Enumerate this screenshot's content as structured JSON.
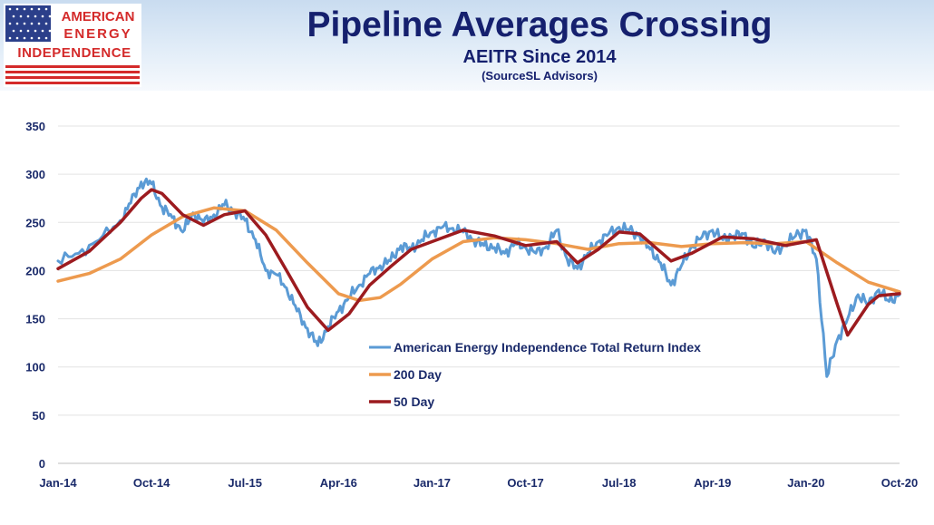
{
  "header": {
    "logo_line1": "AMERICAN",
    "logo_line2": "ENERGY",
    "logo_line3": "INDEPENDENCE",
    "title": "Pipeline Averages Crossing",
    "subtitle": "AEITR Since 2014",
    "source": "(SourceSL Advisors)"
  },
  "colors": {
    "brand_red": "#d42a2a",
    "brand_navy": "#15206e",
    "flag_blue": "#2b3f8a",
    "index": "#5b9bd5",
    "ma200": "#ed9a4e",
    "ma50": "#9c1b1f",
    "grid": "#e3e3e3"
  },
  "chart_data": {
    "type": "line",
    "x_tick_labels": [
      "Jan-14",
      "Oct-14",
      "Jul-15",
      "Apr-16",
      "Jan-17",
      "Oct-17",
      "Jul-18",
      "Apr-19",
      "Jan-20",
      "Oct-20"
    ],
    "y_tick_labels": [
      "0",
      "50",
      "100",
      "150",
      "200",
      "250",
      "300",
      "350"
    ],
    "ylim": [
      0,
      350
    ],
    "xlim": [
      "2014-01",
      "2020-10"
    ],
    "grid": "horizontal",
    "legend_position": "center",
    "series": [
      {
        "name": "American Energy Independence Total Return Index",
        "color": "#5b9bd5",
        "points": [
          [
            "2014-01",
            210
          ],
          [
            "2014-03",
            218
          ],
          [
            "2014-05",
            232
          ],
          [
            "2014-07",
            252
          ],
          [
            "2014-08",
            270
          ],
          [
            "2014-09",
            292
          ],
          [
            "2014-10",
            290
          ],
          [
            "2014-11",
            266
          ],
          [
            "2014-12",
            255
          ],
          [
            "2015-01",
            240
          ],
          [
            "2015-02",
            260
          ],
          [
            "2015-03",
            250
          ],
          [
            "2015-04",
            258
          ],
          [
            "2015-05",
            268
          ],
          [
            "2015-06",
            262
          ],
          [
            "2015-07",
            252
          ],
          [
            "2015-08",
            232
          ],
          [
            "2015-09",
            200
          ],
          [
            "2015-10",
            196
          ],
          [
            "2015-11",
            182
          ],
          [
            "2015-12",
            158
          ],
          [
            "2016-01",
            140
          ],
          [
            "2016-02",
            122
          ],
          [
            "2016-03",
            142
          ],
          [
            "2016-04",
            158
          ],
          [
            "2016-05",
            172
          ],
          [
            "2016-06",
            185
          ],
          [
            "2016-07",
            197
          ],
          [
            "2016-08",
            205
          ],
          [
            "2016-09",
            210
          ],
          [
            "2016-10",
            226
          ],
          [
            "2016-11",
            222
          ],
          [
            "2016-12",
            232
          ],
          [
            "2017-01",
            240
          ],
          [
            "2017-02",
            245
          ],
          [
            "2017-03",
            244
          ],
          [
            "2017-04",
            240
          ],
          [
            "2017-05",
            232
          ],
          [
            "2017-06",
            226
          ],
          [
            "2017-07",
            224
          ],
          [
            "2017-08",
            218
          ],
          [
            "2017-09",
            228
          ],
          [
            "2017-10",
            224
          ],
          [
            "2017-11",
            218
          ],
          [
            "2017-12",
            225
          ],
          [
            "2018-01",
            242
          ],
          [
            "2018-02",
            212
          ],
          [
            "2018-03",
            202
          ],
          [
            "2018-04",
            218
          ],
          [
            "2018-05",
            230
          ],
          [
            "2018-06",
            238
          ],
          [
            "2018-07",
            245
          ],
          [
            "2018-08",
            242
          ],
          [
            "2018-09",
            236
          ],
          [
            "2018-10",
            222
          ],
          [
            "2018-11",
            208
          ],
          [
            "2018-12",
            185
          ],
          [
            "2019-01",
            205
          ],
          [
            "2019-02",
            225
          ],
          [
            "2019-03",
            235
          ],
          [
            "2019-04",
            242
          ],
          [
            "2019-05",
            232
          ],
          [
            "2019-06",
            236
          ],
          [
            "2019-07",
            238
          ],
          [
            "2019-08",
            224
          ],
          [
            "2019-09",
            232
          ],
          [
            "2019-10",
            218
          ],
          [
            "2019-11",
            228
          ],
          [
            "2019-12",
            236
          ],
          [
            "2020-01",
            242
          ],
          [
            "2020-02",
            212
          ],
          [
            "2020-03",
            90
          ],
          [
            "2020-04",
            128
          ],
          [
            "2020-05",
            150
          ],
          [
            "2020-06",
            175
          ],
          [
            "2020-07",
            165
          ],
          [
            "2020-08",
            180
          ],
          [
            "2020-09",
            168
          ],
          [
            "2020-10",
            175
          ]
        ]
      },
      {
        "name": "200 Day",
        "color": "#ed9a4e",
        "points": [
          [
            "2014-01",
            189
          ],
          [
            "2014-04",
            197
          ],
          [
            "2014-07",
            212
          ],
          [
            "2014-10",
            237
          ],
          [
            "2015-01",
            256
          ],
          [
            "2015-04",
            265
          ],
          [
            "2015-07",
            262
          ],
          [
            "2015-10",
            242
          ],
          [
            "2016-01",
            208
          ],
          [
            "2016-04",
            176
          ],
          [
            "2016-06",
            169
          ],
          [
            "2016-08",
            172
          ],
          [
            "2016-10",
            186
          ],
          [
            "2017-01",
            212
          ],
          [
            "2017-04",
            230
          ],
          [
            "2017-07",
            234
          ],
          [
            "2017-10",
            232
          ],
          [
            "2018-01",
            228
          ],
          [
            "2018-04",
            222
          ],
          [
            "2018-07",
            228
          ],
          [
            "2018-10",
            229
          ],
          [
            "2019-01",
            225
          ],
          [
            "2019-04",
            228
          ],
          [
            "2019-07",
            229
          ],
          [
            "2019-10",
            228
          ],
          [
            "2020-01",
            230
          ],
          [
            "2020-04",
            208
          ],
          [
            "2020-07",
            188
          ],
          [
            "2020-10",
            178
          ]
        ]
      },
      {
        "name": "50 Day",
        "color": "#9c1b1f",
        "points": [
          [
            "2014-01",
            202
          ],
          [
            "2014-04",
            220
          ],
          [
            "2014-07",
            250
          ],
          [
            "2014-09",
            275
          ],
          [
            "2014-10",
            284
          ],
          [
            "2014-11",
            280
          ],
          [
            "2015-01",
            258
          ],
          [
            "2015-03",
            247
          ],
          [
            "2015-05",
            258
          ],
          [
            "2015-07",
            262
          ],
          [
            "2015-09",
            237
          ],
          [
            "2015-11",
            200
          ],
          [
            "2016-01",
            162
          ],
          [
            "2016-03",
            138
          ],
          [
            "2016-05",
            155
          ],
          [
            "2016-07",
            185
          ],
          [
            "2016-09",
            204
          ],
          [
            "2016-11",
            222
          ],
          [
            "2017-01",
            230
          ],
          [
            "2017-04",
            242
          ],
          [
            "2017-07",
            236
          ],
          [
            "2017-10",
            226
          ],
          [
            "2018-01",
            230
          ],
          [
            "2018-03",
            208
          ],
          [
            "2018-05",
            222
          ],
          [
            "2018-07",
            240
          ],
          [
            "2018-09",
            238
          ],
          [
            "2018-12",
            210
          ],
          [
            "2019-02",
            218
          ],
          [
            "2019-05",
            235
          ],
          [
            "2019-08",
            233
          ],
          [
            "2019-11",
            226
          ],
          [
            "2020-02",
            232
          ],
          [
            "2020-04",
            165
          ],
          [
            "2020-05",
            133
          ],
          [
            "2020-07",
            165
          ],
          [
            "2020-08",
            174
          ],
          [
            "2020-10",
            176
          ]
        ]
      }
    ]
  }
}
